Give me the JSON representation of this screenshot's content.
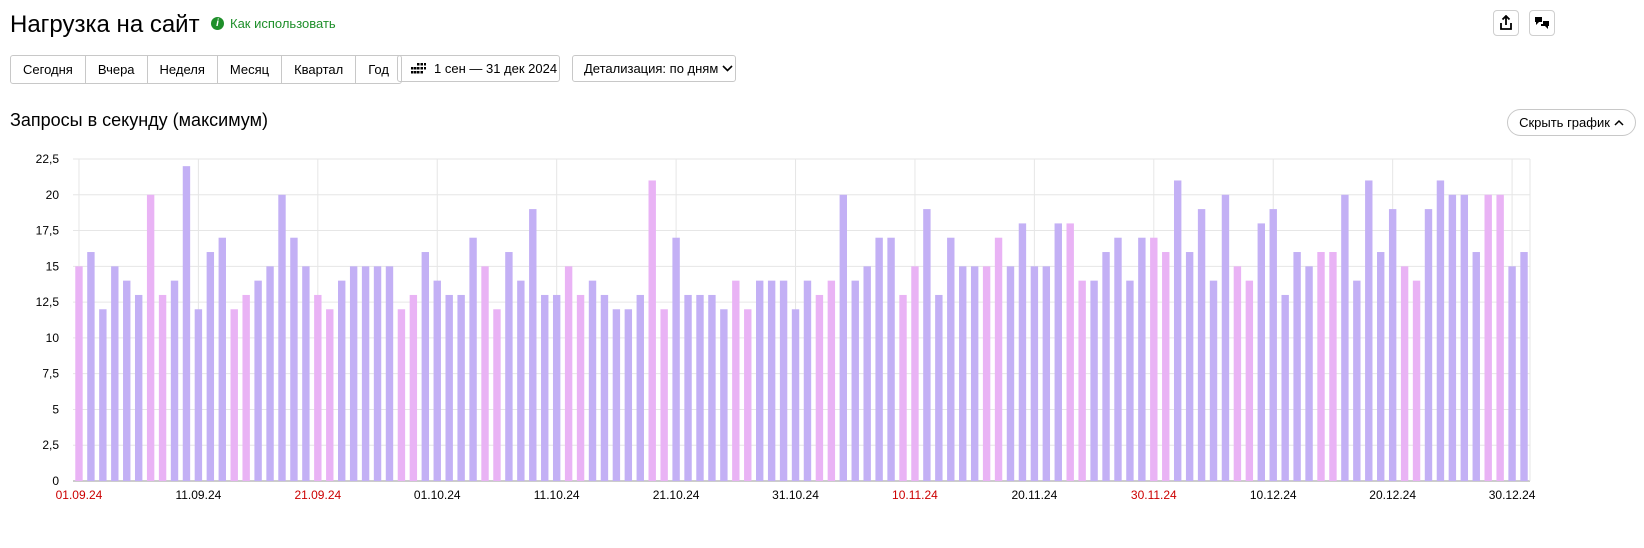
{
  "header": {
    "title": "Нагрузка на сайт",
    "help_label": "Как использовать"
  },
  "toolbar": {
    "periods": [
      "Сегодня",
      "Вчера",
      "Неделя",
      "Месяц",
      "Квартал",
      "Год"
    ],
    "date_range": "1 сен — 31 дек 2024",
    "detail_label": "Детализация: по дням",
    "hide_chart_label": "Скрыть график"
  },
  "icons": {
    "help": "info-icon",
    "share": "share-icon",
    "settings": "speech-bubbles-icon",
    "calendar": "calendar-grid-icon",
    "dropdown": "chevron-down-icon",
    "hide": "chevron-up-icon"
  },
  "colors": {
    "weekday_bar": "#c3b0f5",
    "weekend_bar": "#e9b3f5",
    "help_green": "#1e8f2a",
    "weekend_label": "#cc0000",
    "grid": "#e6e6e6"
  },
  "chart_data": {
    "type": "bar",
    "title": "Запросы в секунду (максимум)",
    "x_tick_labels": [
      "01.09.24",
      "11.09.24",
      "21.09.24",
      "01.10.24",
      "11.10.24",
      "21.10.24",
      "31.10.24",
      "10.11.24",
      "20.11.24",
      "30.11.24",
      "10.12.24",
      "20.12.24",
      "30.12.24"
    ],
    "weekend_tick_labels": [
      "01.09.24",
      "21.09.24",
      "10.11.24",
      "30.11.24"
    ],
    "y_tick_labels": [
      "0",
      "2,5",
      "5",
      "7,5",
      "10",
      "12,5",
      "15",
      "17,5",
      "20",
      "22,5"
    ],
    "ylim": [
      0,
      22.5
    ],
    "values": [
      15,
      16,
      12,
      15,
      14,
      13,
      20,
      13,
      14,
      22,
      12,
      16,
      17,
      12,
      13,
      14,
      15,
      20,
      17,
      15,
      13,
      12,
      14,
      15,
      15,
      15,
      15,
      12,
      13,
      16,
      14,
      13,
      13,
      17,
      15,
      12,
      16,
      14,
      19,
      13,
      13,
      15,
      13,
      14,
      13,
      12,
      12,
      13,
      21,
      12,
      17,
      13,
      13,
      13,
      12,
      14,
      12,
      14,
      14,
      14,
      12,
      14,
      13,
      14,
      20,
      14,
      15,
      17,
      17,
      13,
      15,
      19,
      13,
      17,
      15,
      15,
      15,
      17,
      15,
      18,
      15,
      15,
      18,
      18,
      14,
      14,
      16,
      17,
      14,
      17,
      17,
      16,
      21,
      16,
      19,
      14,
      20,
      15,
      14,
      18,
      19,
      13,
      16,
      15,
      16,
      16,
      20,
      14,
      21,
      16,
      19,
      15,
      14,
      19,
      21,
      20,
      20,
      16,
      20,
      20,
      15,
      16
    ],
    "weekend_pattern_start_index": 0,
    "grid": true
  }
}
